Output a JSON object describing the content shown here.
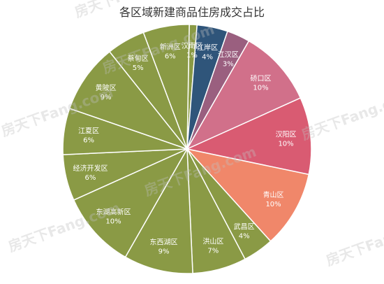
{
  "chart_data": {
    "type": "pie",
    "title": "各区域新建商品住房成交占比",
    "categories": [
      "汉南区",
      "江岸区",
      "江汉区",
      "硚口区",
      "汉阳区",
      "青山区",
      "武昌区",
      "洪山区",
      "东西湖区",
      "东湖高新区",
      "经济开发区",
      "江夏区",
      "黄陂区",
      "蔡甸区",
      "新洲区"
    ],
    "values": [
      1,
      4,
      3,
      10,
      10,
      10,
      4,
      7,
      9,
      10,
      6,
      6,
      9,
      5,
      6
    ],
    "value_labels": [
      "1%",
      "4%",
      "3%",
      "10%",
      "10%",
      "10%",
      "4%",
      "7%",
      "9%",
      "10%",
      "6%",
      "6%",
      "9%",
      "5%",
      "6%"
    ],
    "unit": "%",
    "colors": [
      "#8a9a45",
      "#2f557a",
      "#9a5f7f",
      "#d1708a",
      "#d95b72",
      "#f0876a",
      "#8a9a45",
      "#8a9a45",
      "#8a9a45",
      "#8a9a45",
      "#8a9a45",
      "#8a9a45",
      "#8a9a45",
      "#8a9a45",
      "#8a9a45"
    ],
    "start_angle_deg": 1
  },
  "watermark": {
    "text": "房天下Fang.com"
  }
}
